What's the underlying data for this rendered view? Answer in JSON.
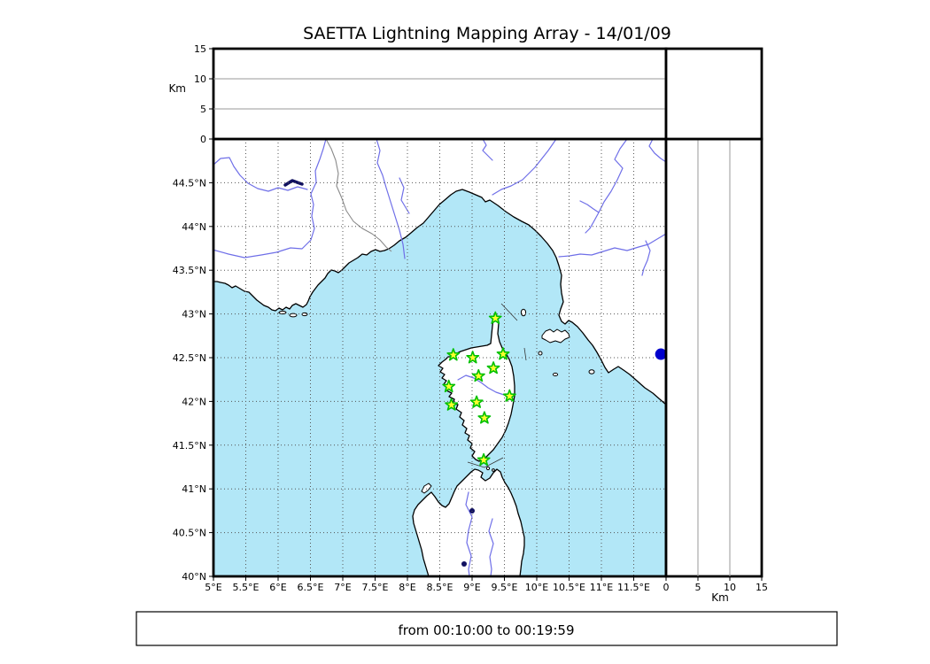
{
  "title": "SAETTA Lightning Mapping Array - 14/01/09",
  "footer": {
    "text": "from 00:10:00 to 00:19:59"
  },
  "altitude_axis": {
    "label": "Km",
    "ticks": [
      0,
      5,
      10,
      15
    ],
    "gridlines": [
      5,
      10
    ],
    "max": 15
  },
  "map": {
    "extent": {
      "lon_min": 5,
      "lon_max": 12,
      "lat_min": 40,
      "lat_max": 45
    },
    "lon_ticks": [
      {
        "v": 5,
        "label": "5°E"
      },
      {
        "v": 5.5,
        "label": "5.5°E"
      },
      {
        "v": 6,
        "label": "6°E"
      },
      {
        "v": 6.5,
        "label": "6.5°E"
      },
      {
        "v": 7,
        "label": "7°E"
      },
      {
        "v": 7.5,
        "label": "7.5°E"
      },
      {
        "v": 8,
        "label": "8°E"
      },
      {
        "v": 8.5,
        "label": "8.5°E"
      },
      {
        "v": 9,
        "label": "9°E"
      },
      {
        "v": 9.5,
        "label": "9.5°E"
      },
      {
        "v": 10,
        "label": "10°E"
      },
      {
        "v": 10.5,
        "label": "10.5°E"
      },
      {
        "v": 11,
        "label": "11°E"
      },
      {
        "v": 11.5,
        "label": "11.5°E"
      }
    ],
    "lat_ticks": [
      {
        "v": 40,
        "label": "40°N"
      },
      {
        "v": 40.5,
        "label": "40.5°N"
      },
      {
        "v": 41,
        "label": "41°N"
      },
      {
        "v": 41.5,
        "label": "41.5°N"
      },
      {
        "v": 42,
        "label": "42°N"
      },
      {
        "v": 42.5,
        "label": "42.5°N"
      },
      {
        "v": 43,
        "label": "43°N"
      },
      {
        "v": 43.5,
        "label": "43.5°N"
      },
      {
        "v": 44,
        "label": "44°N"
      },
      {
        "v": 44.5,
        "label": "44.5°N"
      }
    ],
    "stations": [
      {
        "lon": 9.36,
        "lat": 42.95
      },
      {
        "lon": 8.71,
        "lat": 42.53
      },
      {
        "lon": 9.01,
        "lat": 42.5
      },
      {
        "lon": 9.48,
        "lat": 42.54
      },
      {
        "lon": 9.33,
        "lat": 42.38
      },
      {
        "lon": 9.1,
        "lat": 42.29
      },
      {
        "lon": 8.64,
        "lat": 42.17
      },
      {
        "lon": 9.58,
        "lat": 42.06
      },
      {
        "lon": 9.07,
        "lat": 41.99
      },
      {
        "lon": 8.68,
        "lat": 41.96
      },
      {
        "lon": 9.19,
        "lat": 41.81
      },
      {
        "lon": 9.18,
        "lat": 41.33
      }
    ],
    "event": {
      "lon": 11.92,
      "lat": 42.54
    }
  },
  "colors": {
    "sea": "#b2e7f7",
    "river": "#6f6fe8",
    "lake": "#101060",
    "star_fill": "#ffff2e",
    "star_stroke": "#00c000",
    "event_dot": "#0000cc"
  }
}
